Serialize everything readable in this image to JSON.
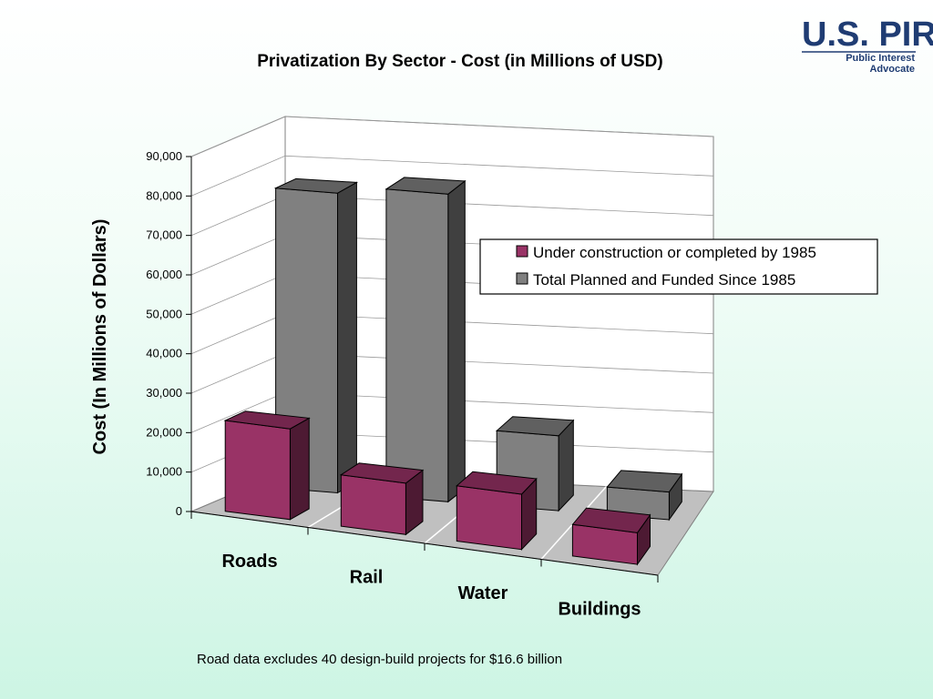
{
  "logo": {
    "main": "U.S. PIRG",
    "line1": "Public Interest",
    "line2": "Advocate"
  },
  "chart_data": {
    "type": "bar",
    "title": "Privatization By Sector - Cost (in Millions of USD)",
    "ylabel": "Cost (In Millions of Dollars)",
    "xlabel": "",
    "ylim": [
      0,
      90000
    ],
    "yticks": [
      "0",
      "10,000",
      "20,000",
      "30,000",
      "40,000",
      "50,000",
      "60,000",
      "70,000",
      "80,000",
      "90,000"
    ],
    "categories": [
      "Roads",
      "Rail",
      "Water",
      "Buildings"
    ],
    "series": [
      {
        "name": "Under construction or completed by 1985",
        "values": [
          23000,
          13000,
          14000,
          8000
        ],
        "color": "#993366"
      },
      {
        "name": "Total Planned and Funded Since 1985",
        "values": [
          76000,
          78000,
          19000,
          7000
        ],
        "color": "#808080"
      }
    ],
    "grid": true,
    "legend_position": "right",
    "projection": "3d"
  },
  "footnote": "Road data excludes 40 design-build projects for $16.6 billion"
}
